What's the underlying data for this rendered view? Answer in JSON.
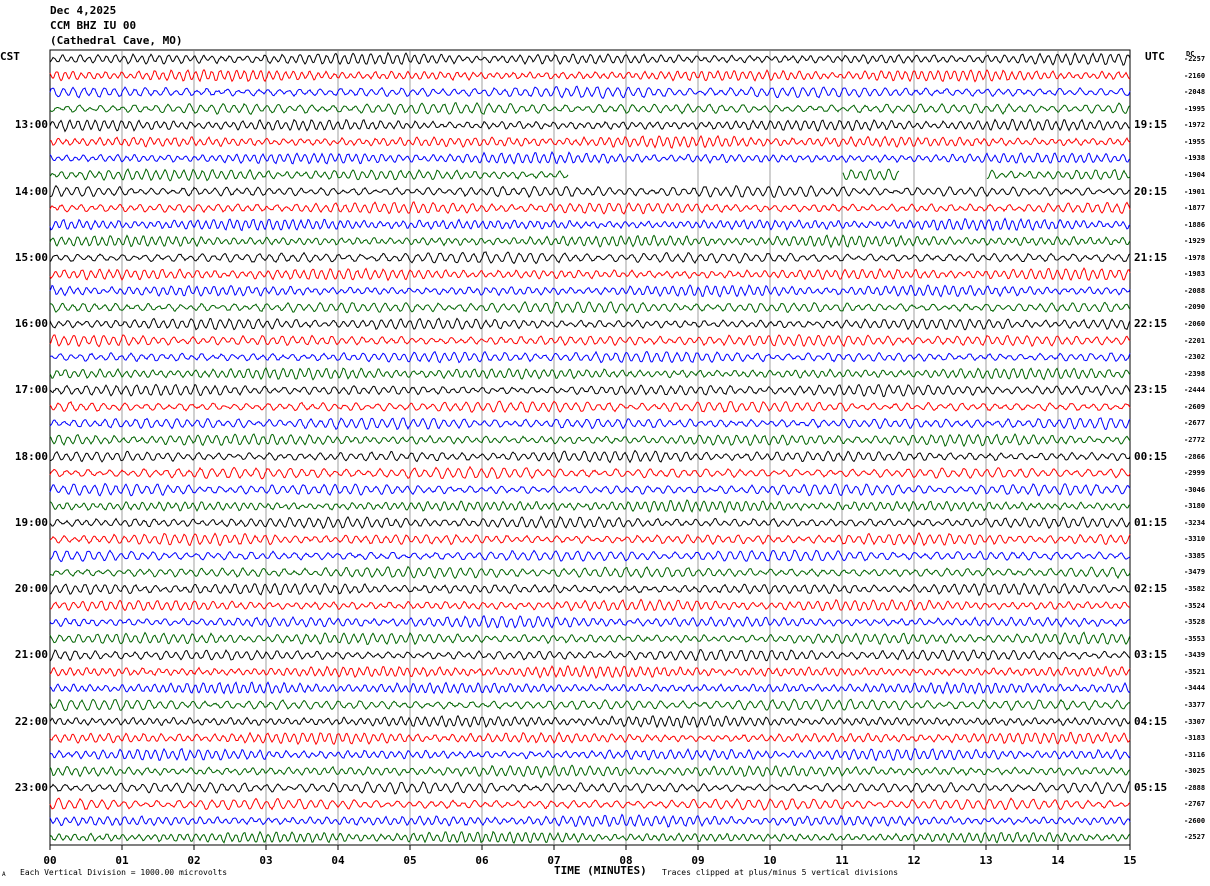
{
  "header": {
    "date": "Dec 4,2025",
    "station": "CCM BHZ IU 00",
    "location": "(Cathedral Cave, MO)"
  },
  "left_zone": "CST",
  "right_zone": "UTC",
  "dc_label": "DC",
  "footer": {
    "left": "Each Vertical Division = 1000.00 microvolts",
    "right": "Traces clipped at plus/minus 5 vertical divisions",
    "corner": "A"
  },
  "colors": {
    "trace_cycle": [
      "#000000",
      "#ff0000",
      "#0000ff",
      "#006400"
    ],
    "grid": "#888888"
  },
  "chart_data": {
    "type": "line",
    "title": "Dec 4,2025 CCM BHZ IU 00 (Cathedral Cave, MO)",
    "xlabel": "TIME (MINUTES)",
    "xlim": [
      0,
      15
    ],
    "x_ticks": [
      "00",
      "01",
      "02",
      "03",
      "04",
      "05",
      "06",
      "07",
      "08",
      "09",
      "10",
      "11",
      "12",
      "13",
      "14",
      "15"
    ],
    "grid": true,
    "left_hour_labels": [
      "13:00",
      "14:00",
      "15:00",
      "16:00",
      "17:00",
      "18:00",
      "19:00",
      "20:00",
      "21:00",
      "22:00",
      "23:00"
    ],
    "right_hour_labels": [
      "19:15",
      "20:15",
      "21:15",
      "22:15",
      "23:15",
      "00:15",
      "01:15",
      "02:15",
      "03:15",
      "04:15",
      "05:15"
    ],
    "dc_offsets": [
      "-2257",
      "-2160",
      "-2048",
      "-1995",
      "-1972",
      "-1955",
      "-1938",
      "-1904",
      "-1901",
      "-1877",
      "-1886",
      "-1929",
      "-1978",
      "-1983",
      "-2088",
      "-2090",
      "-2060",
      "-2201",
      "-2302",
      "-2398",
      "-2444",
      "-2609",
      "-2677",
      "-2772",
      "-2866",
      "-2999",
      "-3046",
      "-3180",
      "-3234",
      "-3310",
      "-3385",
      "-3479",
      "-3582",
      "-3524",
      "-3528",
      "-3553",
      "-3439",
      "-3521",
      "-3444",
      "-3377",
      "-3307",
      "-3183",
      "-3116",
      "-3025",
      "-2888",
      "-2767",
      "-2600",
      "-2527"
    ],
    "gaps": [
      {
        "trace": 7,
        "from_min": 7.2,
        "to_min": 11.0
      },
      {
        "trace": 7,
        "from_min": 11.8,
        "to_min": 13.0
      }
    ]
  }
}
